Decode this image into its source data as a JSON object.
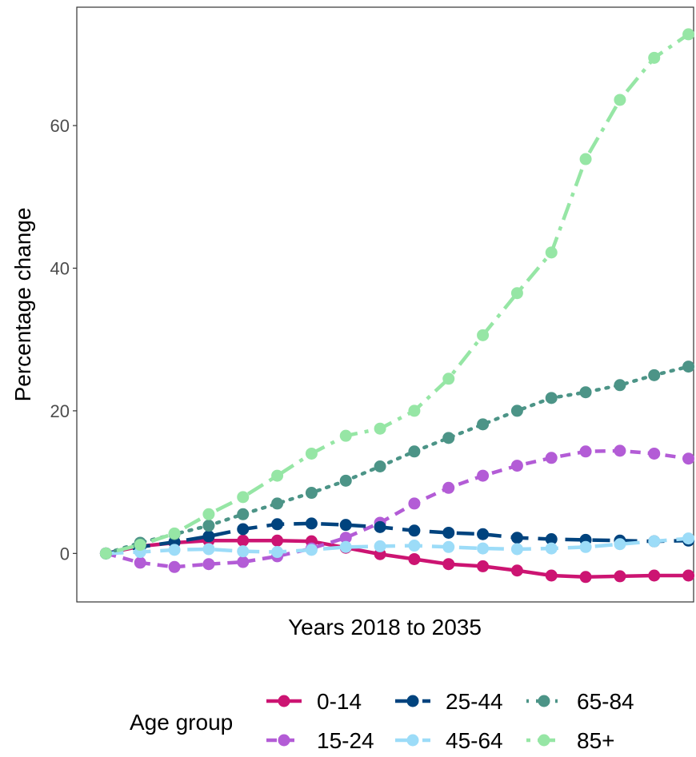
{
  "chart_data": {
    "type": "line",
    "xlabel": "Years 2018 to 2035",
    "ylabel": "Percentage change",
    "x": [
      2018,
      2019,
      2020,
      2021,
      2022,
      2023,
      2024,
      2025,
      2026,
      2027,
      2028,
      2029,
      2030,
      2031,
      2032,
      2033,
      2034,
      2035
    ],
    "ylim": [
      -6.8,
      76.6
    ],
    "yticks": [
      0,
      20,
      40,
      60
    ],
    "ytick_labels": [
      "0",
      "20",
      "40",
      "60"
    ],
    "x_tick_labels_shown": false,
    "grid": false,
    "legend": {
      "title": "Age group",
      "position": "bottom"
    },
    "series": [
      {
        "name": "0-14",
        "color": "#CC1472",
        "line_style": "solid",
        "values": [
          0,
          1.0,
          1.5,
          1.8,
          1.8,
          1.8,
          1.7,
          0.8,
          -0.1,
          -0.8,
          -1.5,
          -1.8,
          -2.4,
          -3.1,
          -3.3,
          -3.2,
          -3.1,
          -3.1
        ]
      },
      {
        "name": "15-24",
        "color": "#B35CD6",
        "line_style": "dashed",
        "values": [
          0,
          -1.3,
          -1.9,
          -1.5,
          -1.2,
          -0.4,
          0.7,
          2.2,
          4.3,
          7.0,
          9.2,
          10.9,
          12.3,
          13.4,
          14.3,
          14.4,
          14.0,
          13.3
        ]
      },
      {
        "name": "25-44",
        "color": "#00437E",
        "line_style": "longdash",
        "values": [
          0,
          0.9,
          1.6,
          2.4,
          3.4,
          4.1,
          4.2,
          4.0,
          3.7,
          3.2,
          2.9,
          2.7,
          2.2,
          2.0,
          1.9,
          1.8,
          1.7,
          1.8
        ]
      },
      {
        "name": "45-64",
        "color": "#9CDCF8",
        "line_style": "longdash",
        "values": [
          0,
          0.2,
          0.5,
          0.6,
          0.3,
          0.2,
          0.5,
          0.9,
          1.0,
          1.1,
          0.9,
          0.7,
          0.6,
          0.7,
          0.9,
          1.3,
          1.7,
          2.1
        ]
      },
      {
        "name": "65-84",
        "color": "#4C9487",
        "line_style": "dotted",
        "values": [
          0,
          1.5,
          2.7,
          3.9,
          5.5,
          7.0,
          8.5,
          10.2,
          12.2,
          14.3,
          16.2,
          18.1,
          20.0,
          21.8,
          22.6,
          23.6,
          25.0,
          26.2
        ]
      },
      {
        "name": "85+",
        "color": "#96E6A5",
        "line_style": "dotdash",
        "values": [
          0,
          1.2,
          2.8,
          5.5,
          7.9,
          10.9,
          14.0,
          16.5,
          17.5,
          20.0,
          24.5,
          30.6,
          36.5,
          42.2,
          55.3,
          63.6,
          69.5,
          72.8
        ]
      }
    ]
  }
}
